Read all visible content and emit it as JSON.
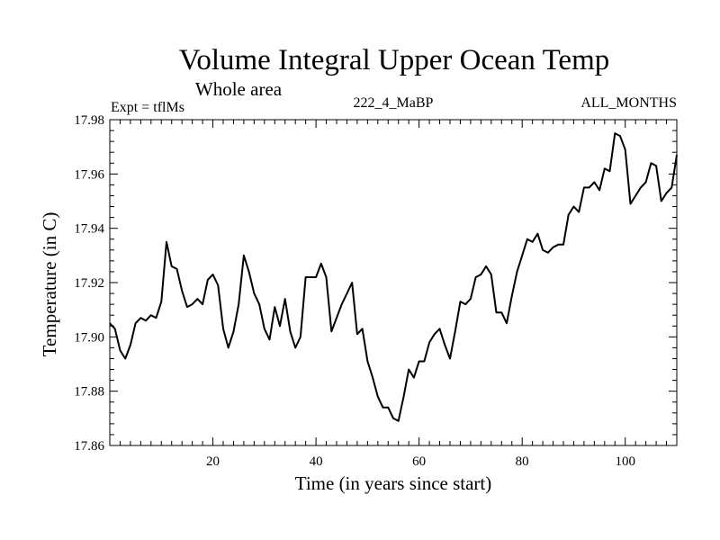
{
  "chart_data": {
    "type": "line",
    "title": "Volume Integral Upper Ocean Temp",
    "subtitle": "Whole area",
    "annotations": {
      "left": "Expt = tflMs",
      "center": "222_4_MaBP",
      "right": "ALL_MONTHS"
    },
    "xlabel": "Time (in years since start)",
    "ylabel": "Temperature (in C)",
    "xlim": [
      0,
      110
    ],
    "ylim": [
      17.86,
      17.98
    ],
    "grid": false,
    "xticks": [
      20,
      40,
      60,
      80,
      100
    ],
    "xtick_labels": [
      "20",
      "40",
      "60",
      "80",
      "100"
    ],
    "yticks": [
      17.86,
      17.88,
      17.9,
      17.92,
      17.94,
      17.96,
      17.98
    ],
    "ytick_labels": [
      "17.86",
      "17.88",
      "17.90",
      "17.92",
      "17.94",
      "17.96",
      "17.98"
    ],
    "series": [
      {
        "name": "Volume Integral Upper Ocean Temp",
        "x": [
          0,
          1,
          2,
          3,
          4,
          5,
          6,
          7,
          8,
          9,
          10,
          11,
          12,
          13,
          14,
          15,
          16,
          17,
          18,
          19,
          20,
          21,
          22,
          23,
          24,
          25,
          26,
          27,
          28,
          29,
          30,
          31,
          32,
          33,
          34,
          35,
          36,
          37,
          38,
          39,
          40,
          41,
          42,
          43,
          44,
          45,
          46,
          47,
          48,
          49,
          50,
          51,
          52,
          53,
          54,
          55,
          56,
          57,
          58,
          59,
          60,
          61,
          62,
          63,
          64,
          65,
          66,
          67,
          68,
          69,
          70,
          71,
          72,
          73,
          74,
          75,
          76,
          77,
          78,
          79,
          80,
          81,
          82,
          83,
          84,
          85,
          86,
          87,
          88,
          89,
          90,
          91,
          92,
          93,
          94,
          95,
          96,
          97,
          98,
          99,
          100,
          101,
          102,
          103,
          104,
          105,
          106,
          107,
          108,
          109,
          110
        ],
        "values": [
          17.905,
          17.903,
          17.895,
          17.892,
          17.897,
          17.905,
          17.907,
          17.906,
          17.908,
          17.907,
          17.913,
          17.935,
          17.926,
          17.925,
          17.917,
          17.911,
          17.912,
          17.914,
          17.912,
          17.921,
          17.923,
          17.919,
          17.903,
          17.896,
          17.902,
          17.912,
          17.93,
          17.924,
          17.916,
          17.912,
          17.903,
          17.899,
          17.911,
          17.904,
          17.914,
          17.902,
          17.896,
          17.9,
          17.922,
          17.922,
          17.922,
          17.927,
          17.922,
          17.902,
          17.907,
          17.912,
          17.916,
          17.92,
          17.901,
          17.903,
          17.891,
          17.885,
          17.878,
          17.874,
          17.874,
          17.87,
          17.869,
          17.878,
          17.888,
          17.885,
          17.891,
          17.891,
          17.898,
          17.901,
          17.903,
          17.897,
          17.892,
          17.902,
          17.913,
          17.912,
          17.914,
          17.922,
          17.923,
          17.926,
          17.923,
          17.909,
          17.909,
          17.905,
          17.915,
          17.924,
          17.93,
          17.936,
          17.935,
          17.938,
          17.932,
          17.931,
          17.933,
          17.934,
          17.934,
          17.945,
          17.948,
          17.946,
          17.955,
          17.955,
          17.957,
          17.954,
          17.962,
          17.961,
          17.975,
          17.974,
          17.969,
          17.949,
          17.952,
          17.955,
          17.957,
          17.964,
          17.963,
          17.95,
          17.953,
          17.955,
          17.967
        ]
      }
    ]
  }
}
